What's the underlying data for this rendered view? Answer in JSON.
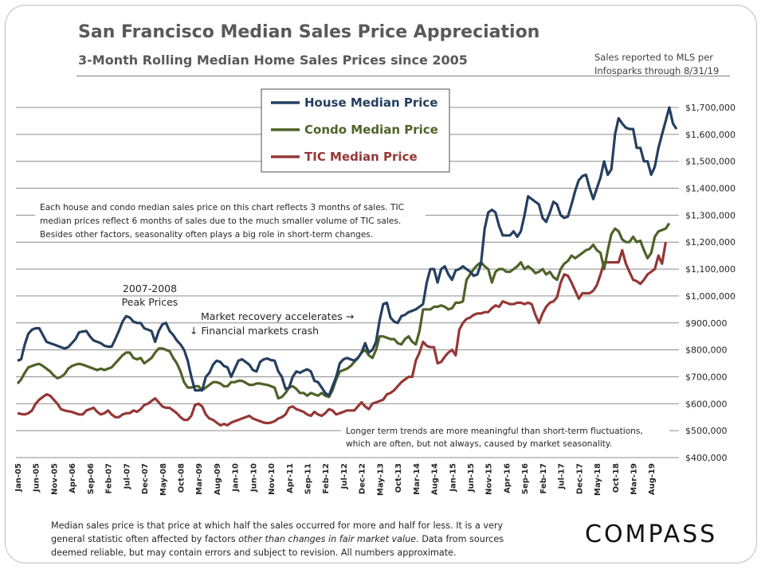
{
  "title": "San Francisco Median Sales Price Appreciation",
  "subtitle": "3-Month Rolling Median Home Sales Prices since 2005",
  "source": [
    "Sales reported to MLS per",
    "Infosparks through 8/31/19"
  ],
  "footnote": {
    "before": "Median sales price is that price at which half the sales occurred for more and half for less. It is a very general statistic often affected by factors ",
    "emphasis": "other than changes in fair market value",
    "after": ". Data from sources deemed reliable, but may contain errors and subject to revision. All numbers approximate."
  },
  "logo": "COMPASS",
  "chart_data": {
    "type": "line",
    "ylim": [
      400000,
      1700000
    ],
    "y_ticks": [
      400000,
      500000,
      600000,
      700000,
      800000,
      900000,
      1000000,
      1100000,
      1200000,
      1300000,
      1400000,
      1500000,
      1600000,
      1700000
    ],
    "y_tick_labels": [
      "$400,000",
      "$500,000",
      "$600,000",
      "$700,000",
      "$800,000",
      "$900,000",
      "$1,000,000",
      "$1,100,000",
      "$1,200,000",
      "$1,300,000",
      "$1,400,000",
      "$1,500,000",
      "$1,600,000",
      "$1,700,000"
    ],
    "x_tick_labels": [
      "Jan-05",
      "Jun-05",
      "Nov-05",
      "Apr-06",
      "Sep-06",
      "Feb-07",
      "Jul-07",
      "Dec-07",
      "May-08",
      "Oct-08",
      "Mar-09",
      "Aug-09",
      "Jan-10",
      "Jun-10",
      "Nov-10",
      "Apr-11",
      "Sep-11",
      "Feb-12",
      "Jul-12",
      "Dec-12",
      "May-13",
      "Oct-13",
      "Mar-14",
      "Aug-14",
      "Jan-15",
      "Jun-15",
      "Nov-15",
      "Apr-16",
      "Sep-16",
      "Feb-17",
      "Jul-17",
      "Dec-17",
      "May-18",
      "Oct-18",
      "Mar-19",
      "Aug-19"
    ],
    "grid": true,
    "legend": "top-center",
    "series": [
      {
        "name": "House Median Price",
        "color": "#243f60",
        "values": [
          760000,
          765000,
          820000,
          860000,
          875000,
          880000,
          880000,
          855000,
          830000,
          825000,
          820000,
          815000,
          810000,
          805000,
          810000,
          825000,
          840000,
          865000,
          868000,
          870000,
          850000,
          835000,
          830000,
          825000,
          815000,
          812000,
          812000,
          840000,
          870000,
          905000,
          925000,
          920000,
          905000,
          900000,
          900000,
          880000,
          875000,
          870000,
          830000,
          870000,
          895000,
          900000,
          870000,
          855000,
          835000,
          820000,
          800000,
          760000,
          700000,
          650000,
          650000,
          650000,
          700000,
          715000,
          745000,
          760000,
          755000,
          740000,
          735000,
          700000,
          730000,
          760000,
          765000,
          755000,
          745000,
          725000,
          720000,
          755000,
          765000,
          768000,
          762000,
          760000,
          720000,
          700000,
          655000,
          660000,
          700000,
          720000,
          715000,
          722000,
          728000,
          720000,
          685000,
          680000,
          660000,
          640000,
          630000,
          665000,
          700000,
          750000,
          765000,
          770000,
          765000,
          760000,
          770000,
          790000,
          825000,
          790000,
          800000,
          830000,
          910000,
          970000,
          975000,
          920000,
          905000,
          900000,
          925000,
          930000,
          940000,
          945000,
          950000,
          960000,
          970000,
          1050000,
          1100000,
          1100000,
          1050000,
          1100000,
          1110000,
          1080000,
          1060000,
          1095000,
          1100000,
          1110000,
          1100000,
          1090000,
          1075000,
          1080000,
          1120000,
          1250000,
          1310000,
          1320000,
          1310000,
          1260000,
          1225000,
          1225000,
          1225000,
          1240000,
          1220000,
          1240000,
          1300000,
          1370000,
          1360000,
          1350000,
          1340000,
          1290000,
          1275000,
          1310000,
          1350000,
          1340000,
          1300000,
          1290000,
          1295000,
          1340000,
          1390000,
          1430000,
          1445000,
          1450000,
          1400000,
          1360000,
          1400000,
          1440000,
          1500000,
          1450000,
          1470000,
          1600000,
          1660000,
          1640000,
          1625000,
          1620000,
          1620000,
          1550000,
          1550000,
          1500000,
          1500000,
          1450000,
          1480000,
          1550000,
          1600000,
          1650000,
          1700000,
          1640000,
          1620000
        ]
      },
      {
        "name": "Condo Median Price",
        "color": "#4f6228",
        "values": [
          675000,
          690000,
          715000,
          735000,
          740000,
          745000,
          748000,
          740000,
          730000,
          720000,
          705000,
          695000,
          700000,
          710000,
          730000,
          740000,
          745000,
          748000,
          745000,
          740000,
          735000,
          730000,
          725000,
          730000,
          725000,
          730000,
          735000,
          750000,
          765000,
          780000,
          790000,
          790000,
          770000,
          765000,
          770000,
          750000,
          760000,
          770000,
          790000,
          805000,
          805000,
          800000,
          795000,
          770000,
          750000,
          720000,
          680000,
          660000,
          660000,
          665000,
          665000,
          650000,
          660000,
          670000,
          680000,
          680000,
          675000,
          665000,
          665000,
          680000,
          680000,
          685000,
          685000,
          678000,
          670000,
          670000,
          675000,
          675000,
          672000,
          670000,
          665000,
          660000,
          620000,
          625000,
          640000,
          660000,
          665000,
          655000,
          640000,
          640000,
          630000,
          640000,
          635000,
          630000,
          640000,
          630000,
          625000,
          650000,
          690000,
          720000,
          725000,
          730000,
          740000,
          755000,
          770000,
          790000,
          800000,
          780000,
          770000,
          800000,
          850000,
          850000,
          845000,
          840000,
          840000,
          825000,
          820000,
          840000,
          850000,
          830000,
          820000,
          870000,
          950000,
          950000,
          950000,
          960000,
          960000,
          965000,
          960000,
          950000,
          955000,
          975000,
          975000,
          980000,
          1060000,
          1080000,
          1100000,
          1115000,
          1125000,
          1110000,
          1100000,
          1050000,
          1090000,
          1100000,
          1100000,
          1090000,
          1090000,
          1100000,
          1110000,
          1125000,
          1100000,
          1110000,
          1100000,
          1085000,
          1090000,
          1100000,
          1080000,
          1090000,
          1070000,
          1060000,
          1100000,
          1120000,
          1130000,
          1150000,
          1140000,
          1150000,
          1160000,
          1170000,
          1175000,
          1190000,
          1170000,
          1160000,
          1100000,
          1170000,
          1230000,
          1250000,
          1240000,
          1210000,
          1200000,
          1200000,
          1220000,
          1200000,
          1205000,
          1170000,
          1140000,
          1160000,
          1220000,
          1240000,
          1245000,
          1250000,
          1270000
        ]
      },
      {
        "name": "TIC Median Price",
        "color": "#953735",
        "values": [
          565000,
          562000,
          560000,
          565000,
          575000,
          600000,
          615000,
          625000,
          635000,
          630000,
          615000,
          600000,
          580000,
          575000,
          572000,
          570000,
          565000,
          560000,
          560000,
          575000,
          580000,
          585000,
          570000,
          560000,
          565000,
          575000,
          560000,
          550000,
          550000,
          560000,
          565000,
          565000,
          575000,
          570000,
          580000,
          595000,
          600000,
          610000,
          620000,
          605000,
          590000,
          585000,
          585000,
          575000,
          565000,
          550000,
          540000,
          540000,
          555000,
          595000,
          600000,
          590000,
          560000,
          545000,
          540000,
          530000,
          520000,
          525000,
          520000,
          530000,
          535000,
          540000,
          545000,
          550000,
          555000,
          545000,
          540000,
          535000,
          530000,
          528000,
          530000,
          535000,
          545000,
          550000,
          560000,
          585000,
          590000,
          580000,
          575000,
          570000,
          560000,
          555000,
          570000,
          560000,
          555000,
          565000,
          580000,
          575000,
          560000,
          565000,
          570000,
          575000,
          575000,
          575000,
          590000,
          605000,
          590000,
          580000,
          600000,
          605000,
          610000,
          615000,
          635000,
          640000,
          650000,
          665000,
          680000,
          690000,
          700000,
          700000,
          760000,
          790000,
          830000,
          815000,
          810000,
          810000,
          750000,
          755000,
          775000,
          790000,
          800000,
          780000,
          875000,
          900000,
          915000,
          920000,
          930000,
          935000,
          935000,
          940000,
          940000,
          955000,
          965000,
          960000,
          980000,
          975000,
          970000,
          970000,
          975000,
          975000,
          970000,
          975000,
          970000,
          930000,
          900000,
          935000,
          960000,
          975000,
          980000,
          995000,
          1050000,
          1080000,
          1075000,
          1050000,
          1020000,
          990000,
          1010000,
          1010000,
          1010000,
          1020000,
          1040000,
          1080000,
          1125000,
          1125000,
          1125000,
          1125000,
          1125000,
          1170000,
          1120000,
          1090000,
          1060000,
          1055000,
          1045000,
          1060000,
          1080000,
          1090000,
          1100000,
          1150000,
          1120000,
          1200000
        ]
      }
    ],
    "annotations": {
      "peak": [
        "2007-2008",
        "Peak Prices"
      ],
      "recovery": "Market recovery accelerates →",
      "crash": "↓ Financial markets crash",
      "note_top": [
        "Each house and condo median sales price on this chart reflects 3 months of sales. TIC",
        "median prices reflect 6 months of sales due to the much smaller volume of TIC sales.",
        "Besides other factors, seasonality often plays a big role in short-term changes."
      ],
      "note_bottom": [
        "Longer term trends are more meaningful than short-term fluctuations,",
        "which are often, but not always, caused by market seasonality."
      ]
    }
  }
}
